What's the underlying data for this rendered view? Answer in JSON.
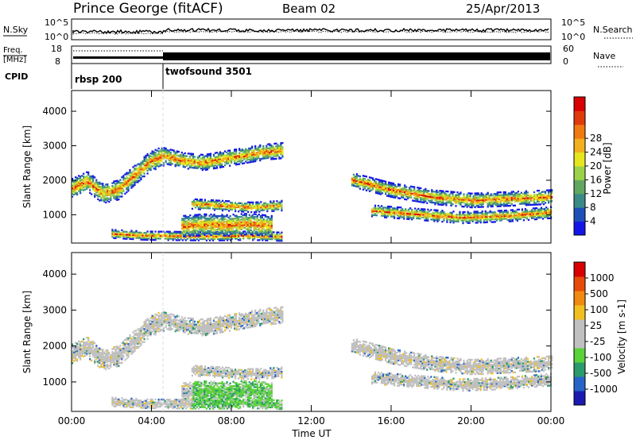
{
  "header": {
    "station": "Prince George (fitACF)",
    "beam": "Beam 02",
    "date": "25/Apr/2013"
  },
  "noise_panel": {
    "left_label": "N.Sky",
    "right_label": "N.Search",
    "left_ticks": [
      "10^5",
      "10^0"
    ],
    "right_ticks": [
      "10^5",
      "10^0"
    ]
  },
  "freq_panel": {
    "left_label_line1": "Freq.",
    "left_label_line2": "[MHz]",
    "right_label": "Nave",
    "left_ticks": [
      "18",
      "8"
    ],
    "right_ticks": [
      "60",
      "0"
    ]
  },
  "cpid": {
    "label": "CPID",
    "modes": [
      {
        "name": "rbsp 200",
        "start_hour": 0
      },
      {
        "name": "twofsound 3501",
        "start_hour": 4.5
      }
    ]
  },
  "chart_data": [
    {
      "type": "heatmap",
      "quantity": "Power",
      "colorbar_label": "Power [dB]",
      "colorbar_ticks": [
        "4",
        "8",
        "12",
        "16",
        "20",
        "24",
        "28"
      ],
      "colorbar_colors": [
        "#1515e8",
        "#1f4fb8",
        "#3a8a88",
        "#60a860",
        "#9cd24a",
        "#e6e61e",
        "#f0b020",
        "#f07a10",
        "#e03a0a",
        "#d80000"
      ],
      "xlabel": "Time UT",
      "ylabel": "Slant Range [km]",
      "x_ticks": [
        "00:00",
        "04:00",
        "08:00",
        "12:00",
        "16:00",
        "20:00",
        "00:00"
      ],
      "y_ticks": [
        "1000",
        "2000",
        "3000",
        "4000"
      ],
      "xlim": [
        0,
        24
      ],
      "ylim": [
        180,
        4600
      ],
      "echo_regions": [
        {
          "t": [
            0.0,
            4.6
          ],
          "r": [
            1750,
            1950,
            1600,
            1700,
            2100,
            2500,
            2700
          ],
          "width": 280
        },
        {
          "t": [
            4.6,
            10.6
          ],
          "r": [
            2700,
            2550,
            2500,
            2600,
            2700,
            2800,
            2850
          ],
          "width": 220
        },
        {
          "t": [
            2.0,
            10.5
          ],
          "r": [
            430,
            380,
            370,
            360,
            380,
            350
          ],
          "width": 120
        },
        {
          "t": [
            5.5,
            10.0
          ],
          "r": [
            650,
            700,
            680,
            720,
            650
          ],
          "width": 300
        },
        {
          "t": [
            6.0,
            10.5
          ],
          "r": [
            1300,
            1250,
            1200,
            1250
          ],
          "width": 140
        },
        {
          "t": [
            14.0,
            24.0
          ],
          "r": [
            2000,
            1700,
            1500,
            1400,
            1450,
            1500
          ],
          "width": 200
        },
        {
          "t": [
            15.0,
            24.0
          ],
          "r": [
            1100,
            1000,
            900,
            950,
            1050
          ],
          "width": 160
        }
      ]
    },
    {
      "type": "heatmap",
      "quantity": "Velocity",
      "colorbar_label": "Velocity [m s-1]",
      "colorbar_ticks": [
        "1000",
        "500",
        "100",
        "25",
        "-25",
        "-100",
        "-500",
        "-1000"
      ],
      "colorbar_colors": [
        "#1a1ab0",
        "#2864c8",
        "#2a9a6a",
        "#5ad23a",
        "#c0c0c0",
        "#c0c0c0",
        "#f0c020",
        "#f08a10",
        "#e84a0a",
        "#d80000"
      ],
      "xlabel": "Time UT",
      "ylabel": "Slant Range [km]",
      "x_ticks": [
        "00:00",
        "04:00",
        "08:00",
        "12:00",
        "16:00",
        "20:00",
        "00:00"
      ],
      "y_ticks": [
        "1000",
        "2000",
        "3000",
        "4000"
      ],
      "xlim": [
        0,
        24
      ],
      "ylim": [
        180,
        4600
      ]
    }
  ]
}
